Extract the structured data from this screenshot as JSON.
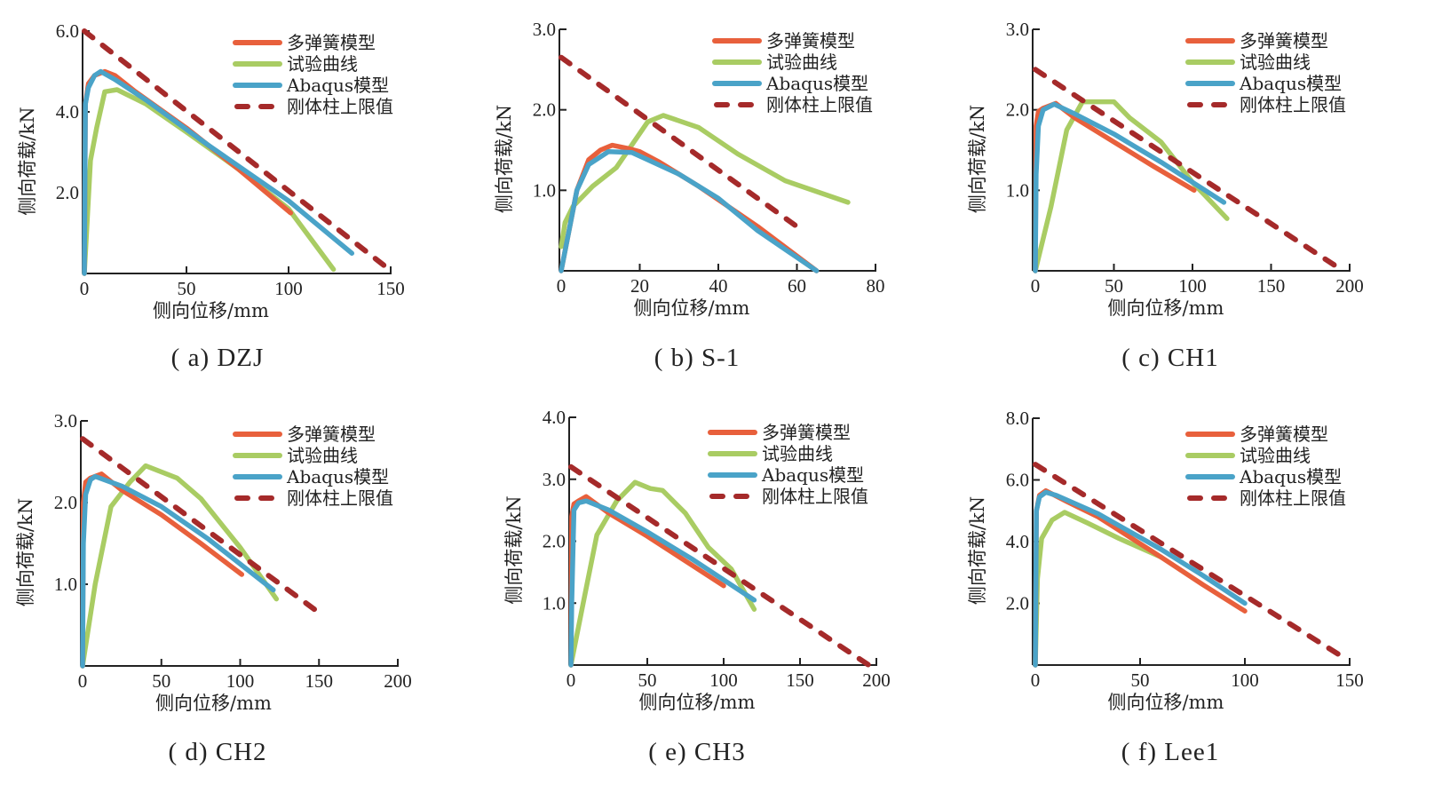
{
  "figure": {
    "series_styles": [
      {
        "name": "多弹簧模型",
        "color": "#E8603C",
        "dash": false
      },
      {
        "name": "试验曲线",
        "color": "#A9CC63",
        "dash": false
      },
      {
        "name": "Abaqus模型",
        "color": "#4AA3C8",
        "dash": false
      },
      {
        "name": "刚体柱上限值",
        "color": "#A52A2A",
        "dash": true
      }
    ]
  },
  "chart_data": [
    {
      "type": "line",
      "caption": "( a) DZJ",
      "xlabel": "侧向位移/mm",
      "ylabel": "侧向荷载/kN",
      "xlim": [
        0,
        150
      ],
      "ylim": [
        0,
        6.0
      ],
      "xticks": [
        0,
        50,
        100,
        150
      ],
      "xtick_labels": [
        "0",
        "50",
        "100",
        "150"
      ],
      "yticks": [
        2.0,
        4.0,
        6.0
      ],
      "ytick_labels": [
        "2.0",
        "4.0",
        "6.0"
      ],
      "legend": "top-right",
      "series": [
        {
          "name": "多弹簧模型",
          "x": [
            0,
            0.5,
            2,
            5,
            10,
            15,
            25,
            50,
            75,
            101
          ],
          "y": [
            0,
            4.2,
            4.7,
            4.9,
            5.0,
            4.9,
            4.5,
            3.6,
            2.6,
            1.5
          ]
        },
        {
          "name": "试验曲线",
          "x": [
            0,
            3,
            6,
            10,
            16,
            30,
            50,
            75,
            100,
            122
          ],
          "y": [
            0,
            2.8,
            3.6,
            4.5,
            4.55,
            4.2,
            3.5,
            2.6,
            1.6,
            0.1
          ]
        },
        {
          "name": "Abaqus模型",
          "x": [
            0,
            0.5,
            2,
            5,
            8,
            15,
            30,
            60,
            100,
            131
          ],
          "y": [
            0,
            4.2,
            4.6,
            4.9,
            5.0,
            4.8,
            4.3,
            3.2,
            1.8,
            0.5
          ]
        },
        {
          "name": "刚体柱上限值",
          "x": [
            0,
            148
          ],
          "y": [
            6.0,
            0.15
          ]
        }
      ]
    },
    {
      "type": "line",
      "caption": "( b) S-1",
      "xlabel": "侧向位移/mm",
      "ylabel": "侧向荷载/kN",
      "xlim": [
        0,
        80
      ],
      "ylim": [
        0,
        3.0
      ],
      "xticks": [
        0,
        20,
        40,
        60,
        80
      ],
      "xtick_labels": [
        "0",
        "20",
        "40",
        "60",
        "80"
      ],
      "yticks": [
        1.0,
        2.0,
        3.0
      ],
      "ytick_labels": [
        "1.0",
        "2.0",
        "3.0"
      ],
      "legend": "top-right",
      "series": [
        {
          "name": "多弹簧模型",
          "x": [
            0,
            4,
            7,
            10,
            13,
            17,
            20,
            25,
            35,
            50,
            65
          ],
          "y": [
            0,
            1.0,
            1.38,
            1.5,
            1.56,
            1.52,
            1.48,
            1.35,
            1.05,
            0.55,
            0.0
          ]
        },
        {
          "name": "试验曲线",
          "x": [
            0,
            1,
            3,
            8,
            14,
            22,
            26,
            35,
            45,
            57,
            73
          ],
          "y": [
            0.3,
            0.6,
            0.8,
            1.05,
            1.28,
            1.85,
            1.93,
            1.78,
            1.45,
            1.12,
            0.85
          ]
        },
        {
          "name": "Abaqus模型",
          "x": [
            0,
            4,
            7,
            12,
            18,
            22,
            30,
            40,
            50,
            65
          ],
          "y": [
            0,
            1.0,
            1.32,
            1.48,
            1.47,
            1.38,
            1.2,
            0.9,
            0.5,
            0.0
          ]
        },
        {
          "name": "刚体柱上限值",
          "x": [
            0,
            60
          ],
          "y": [
            2.65,
            0.55
          ]
        }
      ]
    },
    {
      "type": "line",
      "caption": "( c) CH1",
      "xlabel": "侧向位移/mm",
      "ylabel": "侧向荷载/kN",
      "xlim": [
        0,
        200
      ],
      "ylim": [
        0,
        3.0
      ],
      "xticks": [
        0,
        50,
        100,
        150,
        200
      ],
      "xtick_labels": [
        "0",
        "50",
        "100",
        "150",
        "200"
      ],
      "yticks": [
        1.0,
        2.0,
        3.0
      ],
      "ytick_labels": [
        "1.0",
        "2.0",
        "3.0"
      ],
      "legend": "top-right",
      "series": [
        {
          "name": "多弹簧模型",
          "x": [
            0,
            0.5,
            2,
            5,
            13,
            25,
            50,
            75,
            101
          ],
          "y": [
            0,
            1.8,
            1.98,
            2.02,
            2.08,
            1.9,
            1.6,
            1.3,
            1.0
          ]
        },
        {
          "name": "试验曲线",
          "x": [
            0,
            10,
            20,
            30,
            50,
            60,
            80,
            100,
            122
          ],
          "y": [
            0,
            0.8,
            1.75,
            2.1,
            2.1,
            1.9,
            1.6,
            1.1,
            0.65
          ]
        },
        {
          "name": "Abaqus模型",
          "x": [
            0,
            0.5,
            2,
            5,
            12,
            25,
            50,
            80,
            120
          ],
          "y": [
            0,
            1.2,
            1.8,
            2.0,
            2.07,
            1.95,
            1.7,
            1.35,
            0.85
          ]
        },
        {
          "name": "刚体柱上限值",
          "x": [
            0,
            192
          ],
          "y": [
            2.5,
            0.05
          ]
        }
      ]
    },
    {
      "type": "line",
      "caption": "( d) CH2",
      "xlabel": "侧向位移/mm",
      "ylabel": "侧向荷载/kN",
      "xlim": [
        0,
        200
      ],
      "ylim": [
        0,
        3.0
      ],
      "xticks": [
        0,
        50,
        100,
        150,
        200
      ],
      "xtick_labels": [
        "0",
        "50",
        "100",
        "150",
        "200"
      ],
      "yticks": [
        1.0,
        2.0,
        3.0
      ],
      "ytick_labels": [
        "1.0",
        "2.0",
        "3.0"
      ],
      "legend": "top-right",
      "series": [
        {
          "name": "多弹簧模型",
          "x": [
            0,
            0.5,
            2,
            5,
            12,
            25,
            50,
            75,
            101
          ],
          "y": [
            0,
            2.0,
            2.25,
            2.3,
            2.35,
            2.15,
            1.85,
            1.5,
            1.12
          ]
        },
        {
          "name": "试验曲线",
          "x": [
            0,
            8,
            18,
            30,
            40,
            60,
            75,
            100,
            123
          ],
          "y": [
            0,
            1.0,
            1.95,
            2.25,
            2.45,
            2.3,
            2.05,
            1.45,
            0.82
          ]
        },
        {
          "name": "Abaqus模型",
          "x": [
            0,
            0.5,
            2,
            5,
            8,
            25,
            50,
            80,
            121
          ],
          "y": [
            0,
            1.5,
            2.1,
            2.28,
            2.32,
            2.2,
            1.95,
            1.55,
            0.93
          ]
        },
        {
          "name": "刚体柱上限值",
          "x": [
            0,
            148
          ],
          "y": [
            2.78,
            0.68
          ]
        }
      ]
    },
    {
      "type": "line",
      "caption": "( e) CH3",
      "xlabel": "侧向位移/mm",
      "ylabel": "侧向荷载/kN",
      "xlim": [
        0,
        200
      ],
      "ylim": [
        0,
        4.0
      ],
      "xticks": [
        0,
        50,
        100,
        150,
        200
      ],
      "xtick_labels": [
        "0",
        "50",
        "100",
        "150",
        "200"
      ],
      "yticks": [
        1.0,
        2.0,
        3.0,
        4.0
      ],
      "ytick_labels": [
        "1.0",
        "2.0",
        "3.0",
        "4.0"
      ],
      "legend": "top-right",
      "series": [
        {
          "name": "多弹簧模型",
          "x": [
            0,
            0.5,
            2,
            5,
            10,
            25,
            50,
            75,
            100
          ],
          "y": [
            0,
            2.4,
            2.6,
            2.65,
            2.72,
            2.45,
            2.08,
            1.68,
            1.28
          ]
        },
        {
          "name": "试验曲线",
          "x": [
            0,
            8,
            17,
            30,
            42,
            52,
            60,
            75,
            90,
            105,
            120
          ],
          "y": [
            0,
            1.0,
            2.1,
            2.65,
            2.95,
            2.85,
            2.82,
            2.45,
            1.9,
            1.55,
            0.9
          ]
        },
        {
          "name": "Abaqus模型",
          "x": [
            0,
            0.5,
            2,
            5,
            10,
            25,
            50,
            80,
            120
          ],
          "y": [
            0,
            1.0,
            2.5,
            2.62,
            2.65,
            2.5,
            2.15,
            1.7,
            1.05
          ]
        },
        {
          "name": "刚体柱上限值",
          "x": [
            0,
            195
          ],
          "y": [
            3.2,
            0.0
          ]
        }
      ]
    },
    {
      "type": "line",
      "caption": "( f) Lee1",
      "xlabel": "侧向位移/mm",
      "ylabel": "侧向荷载/kN",
      "xlim": [
        0,
        150
      ],
      "ylim": [
        0,
        8.0
      ],
      "xticks": [
        0,
        50,
        100,
        150
      ],
      "xtick_labels": [
        "0",
        "50",
        "100",
        "150"
      ],
      "yticks": [
        2.0,
        4.0,
        6.0,
        8.0
      ],
      "ytick_labels": [
        "2.0",
        "4.0",
        "6.0",
        "8.0"
      ],
      "legend": "top-right",
      "series": [
        {
          "name": "多弹簧模型",
          "x": [
            0,
            0.5,
            2,
            5,
            15,
            30,
            60,
            80,
            100
          ],
          "y": [
            0,
            5.0,
            5.5,
            5.65,
            5.3,
            4.8,
            3.5,
            2.6,
            1.75
          ]
        },
        {
          "name": "试验曲线",
          "x": [
            0,
            1,
            3,
            8,
            14,
            25,
            40,
            60
          ],
          "y": [
            0,
            2.8,
            4.1,
            4.7,
            4.95,
            4.6,
            4.1,
            3.5
          ]
        },
        {
          "name": "Abaqus模型",
          "x": [
            0,
            0.5,
            2,
            5,
            10,
            30,
            60,
            80,
            100
          ],
          "y": [
            0,
            5.0,
            5.45,
            5.6,
            5.5,
            4.9,
            3.75,
            2.9,
            2.0
          ]
        },
        {
          "name": "刚体柱上限值",
          "x": [
            0,
            147
          ],
          "y": [
            6.5,
            0.25
          ]
        }
      ]
    }
  ]
}
